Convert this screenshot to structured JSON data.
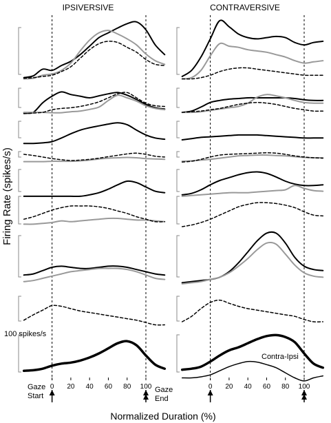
{
  "figure": {
    "panel_titles": [
      "IPSIVERSIVE",
      "CONTRAVERSIVE"
    ],
    "ylabel": "Firing Rate (spikes/s)",
    "xlabel": "Normalized Duration (%)",
    "scale_bar_label": "100 spikes/s",
    "gaze_start_label": [
      "Gaze",
      "Start"
    ],
    "gaze_end_label": [
      "Gaze",
      "End"
    ],
    "difference_label": "Contra-Ipsi"
  },
  "chart_data": [
    {
      "type": "line",
      "title": "IPSIVERSIVE",
      "xlabel": "Normalized Duration (%)",
      "ylabel": "Firing Rate (spikes/s)",
      "x": [
        -30,
        -20,
        -10,
        0,
        10,
        20,
        30,
        40,
        50,
        60,
        70,
        80,
        90,
        100,
        110,
        120
      ],
      "xticks": [
        0,
        20,
        40,
        60,
        80,
        100
      ],
      "xlim": [
        -32,
        122
      ],
      "gaze_markers": [
        0,
        100
      ],
      "scale_bar_spikes_per_s": 100,
      "colors": {
        "black": "#000000",
        "gray": "#999999"
      },
      "series": [
        {
          "color": "black",
          "style": "solid",
          "width": 2,
          "values": [
            0.06,
            0.09,
            0.2,
            0.18,
            0.26,
            0.33,
            0.44,
            0.58,
            0.72,
            0.8,
            0.88,
            0.95,
            0.98,
            0.85,
            0.6,
            0.44
          ]
        },
        {
          "color": "gray",
          "style": "solid",
          "width": 2,
          "values": [
            0.04,
            0.05,
            0.1,
            0.12,
            0.18,
            0.3,
            0.5,
            0.68,
            0.8,
            0.84,
            0.78,
            0.7,
            0.6,
            0.45,
            0.34,
            0.28
          ]
        },
        {
          "color": "black",
          "style": "dashed",
          "width": 1.5,
          "values": [
            0.05,
            0.06,
            0.08,
            0.1,
            0.16,
            0.24,
            0.38,
            0.52,
            0.62,
            0.66,
            0.64,
            0.56,
            0.48,
            0.36,
            0.28,
            0.26
          ]
        },
        {
          "color": "black",
          "style": "solid",
          "width": 2,
          "values": [
            0.04,
            0.06,
            0.35,
            0.55,
            0.68,
            0.6,
            0.55,
            0.5,
            0.56,
            0.62,
            0.66,
            0.58,
            0.45,
            0.3,
            0.2,
            0.16
          ]
        },
        {
          "color": "gray",
          "style": "solid",
          "width": 2,
          "values": [
            0.06,
            0.06,
            0.06,
            0.05,
            0.05,
            0.08,
            0.1,
            0.15,
            0.22,
            0.42,
            0.58,
            0.5,
            0.4,
            0.26,
            0.18,
            0.14
          ]
        },
        {
          "color": "black",
          "style": "dashed",
          "width": 1.5,
          "values": [
            0.02,
            0.04,
            0.06,
            0.14,
            0.18,
            0.2,
            0.24,
            0.3,
            0.38,
            0.5,
            0.62,
            0.66,
            0.5,
            0.34,
            0.26,
            0.24
          ]
        },
        {
          "color": "black",
          "style": "solid",
          "width": 2,
          "values": [
            0.04,
            0.04,
            0.06,
            0.1,
            0.22,
            0.36,
            0.48,
            0.56,
            0.62,
            0.68,
            0.72,
            0.66,
            0.48,
            0.32,
            0.22,
            0.18
          ]
        },
        {
          "color": "gray",
          "style": "solid",
          "width": 2,
          "values": [
            0.12,
            0.12,
            0.12,
            0.14,
            0.14,
            0.14,
            0.16,
            0.2,
            0.26,
            0.3,
            0.32,
            0.34,
            0.32,
            0.28,
            0.26,
            0.24
          ]
        },
        {
          "color": "black",
          "style": "dashed",
          "width": 1.5,
          "values": [
            0.5,
            0.44,
            0.36,
            0.28,
            0.22,
            0.18,
            0.2,
            0.24,
            0.3,
            0.38,
            0.45,
            0.52,
            0.56,
            0.5,
            0.4,
            0.36
          ]
        },
        {
          "color": "black",
          "style": "solid",
          "width": 2,
          "values": [
            0.06,
            0.06,
            0.06,
            0.06,
            0.06,
            0.06,
            0.06,
            0.1,
            0.16,
            0.26,
            0.38,
            0.48,
            0.44,
            0.32,
            0.2,
            0.16
          ]
        },
        {
          "color": "gray",
          "style": "solid",
          "width": 2,
          "values": [
            0.16,
            0.16,
            0.18,
            0.2,
            0.24,
            0.22,
            0.24,
            0.26,
            0.28,
            0.3,
            0.3,
            0.28,
            0.26,
            0.26,
            0.24,
            0.22
          ]
        },
        {
          "color": "black",
          "style": "dashed",
          "width": 1.5,
          "values": [
            0.28,
            0.34,
            0.42,
            0.5,
            0.56,
            0.6,
            0.6,
            0.6,
            0.58,
            0.54,
            0.48,
            0.42,
            0.34,
            0.28,
            0.22,
            0.22
          ]
        },
        {
          "color": "black",
          "style": "solid",
          "width": 2,
          "values": [
            0.16,
            0.18,
            0.24,
            0.3,
            0.32,
            0.3,
            0.28,
            0.28,
            0.3,
            0.32,
            0.32,
            0.3,
            0.26,
            0.22,
            0.18,
            0.16
          ]
        },
        {
          "color": "gray",
          "style": "solid",
          "width": 2,
          "values": [
            0.04,
            0.06,
            0.1,
            0.14,
            0.18,
            0.22,
            0.24,
            0.26,
            0.28,
            0.28,
            0.28,
            0.26,
            0.22,
            0.16,
            0.1,
            0.08
          ]
        },
        {
          "color": "black",
          "style": "dashed",
          "width": 1.5,
          "values": [
            0.2,
            0.34,
            0.46,
            0.58,
            0.56,
            0.5,
            0.44,
            0.4,
            0.36,
            0.32,
            0.28,
            0.24,
            0.2,
            0.14,
            0.08,
            0.08
          ]
        },
        {
          "color": "black",
          "style": "solid",
          "width": 3.5,
          "values": [
            0.16,
            0.17,
            0.2,
            0.26,
            0.3,
            0.32,
            0.36,
            0.42,
            0.5,
            0.6,
            0.7,
            0.74,
            0.66,
            0.46,
            0.28,
            0.2
          ]
        }
      ]
    },
    {
      "type": "line",
      "title": "CONTRAVERSIVE",
      "xlabel": "Normalized Duration (%)",
      "ylabel": "Firing Rate (spikes/s)",
      "x": [
        -30,
        -20,
        -10,
        0,
        10,
        20,
        30,
        40,
        50,
        60,
        70,
        80,
        90,
        100,
        110,
        120
      ],
      "xticks": [
        0,
        20,
        40,
        60,
        80,
        100
      ],
      "xlim": [
        -32,
        122
      ],
      "gaze_markers": [
        0,
        100
      ],
      "scale_bar_spikes_per_s": 100,
      "colors": {
        "black": "#000000",
        "gray": "#999999"
      },
      "series": [
        {
          "color": "black",
          "style": "solid",
          "width": 2,
          "values": [
            0.08,
            0.18,
            0.4,
            0.7,
            1.0,
            0.9,
            0.78,
            0.72,
            0.7,
            0.72,
            0.74,
            0.72,
            0.64,
            0.6,
            0.64,
            0.66
          ]
        },
        {
          "color": "gray",
          "style": "solid",
          "width": 2,
          "values": [
            0.04,
            0.06,
            0.18,
            0.42,
            0.62,
            0.58,
            0.56,
            0.52,
            0.5,
            0.48,
            0.44,
            0.4,
            0.34,
            0.3,
            0.32,
            0.34
          ]
        },
        {
          "color": "black",
          "style": "dashed",
          "width": 1.5,
          "values": [
            0.04,
            0.04,
            0.06,
            0.1,
            0.16,
            0.2,
            0.22,
            0.22,
            0.2,
            0.18,
            0.16,
            0.14,
            0.12,
            0.1,
            0.1,
            0.1
          ]
        },
        {
          "color": "black",
          "style": "solid",
          "width": 2,
          "values": [
            0.06,
            0.1,
            0.22,
            0.36,
            0.42,
            0.46,
            0.48,
            0.5,
            0.5,
            0.5,
            0.5,
            0.5,
            0.48,
            0.44,
            0.42,
            0.42
          ]
        },
        {
          "color": "gray",
          "style": "solid",
          "width": 2,
          "values": [
            0.06,
            0.06,
            0.08,
            0.12,
            0.16,
            0.2,
            0.24,
            0.34,
            0.52,
            0.6,
            0.56,
            0.5,
            0.42,
            0.36,
            0.34,
            0.34
          ]
        },
        {
          "color": "black",
          "style": "dashed",
          "width": 1.5,
          "values": [
            0.06,
            0.08,
            0.1,
            0.14,
            0.18,
            0.24,
            0.3,
            0.34,
            0.36,
            0.34,
            0.3,
            0.24,
            0.18,
            0.14,
            0.1,
            0.1
          ]
        },
        {
          "color": "black",
          "style": "solid",
          "width": 2,
          "values": [
            0.16,
            0.2,
            0.24,
            0.26,
            0.28,
            0.3,
            0.32,
            0.32,
            0.32,
            0.3,
            0.28,
            0.26,
            0.24,
            0.22,
            0.22,
            0.22
          ]
        },
        {
          "color": "gray",
          "style": "solid",
          "width": 2,
          "values": [
            0.14,
            0.16,
            0.2,
            0.24,
            0.3,
            0.36,
            0.42,
            0.44,
            0.46,
            0.46,
            0.44,
            0.42,
            0.38,
            0.34,
            0.32,
            0.32
          ]
        },
        {
          "color": "black",
          "style": "dashed",
          "width": 1.5,
          "values": [
            0.1,
            0.14,
            0.24,
            0.36,
            0.46,
            0.5,
            0.52,
            0.54,
            0.56,
            0.58,
            0.56,
            0.5,
            0.42,
            0.36,
            0.32,
            0.3
          ]
        },
        {
          "color": "black",
          "style": "solid",
          "width": 2,
          "values": [
            0.1,
            0.14,
            0.24,
            0.38,
            0.5,
            0.58,
            0.66,
            0.72,
            0.74,
            0.7,
            0.6,
            0.48,
            0.4,
            0.36,
            0.36,
            0.38
          ]
        },
        {
          "color": "gray",
          "style": "solid",
          "width": 2,
          "values": [
            0.06,
            0.08,
            0.1,
            0.12,
            0.14,
            0.16,
            0.16,
            0.16,
            0.18,
            0.2,
            0.22,
            0.24,
            0.36,
            0.28,
            0.22,
            0.2
          ]
        },
        {
          "color": "black",
          "style": "dashed",
          "width": 1.5,
          "values": [
            0.1,
            0.14,
            0.2,
            0.28,
            0.38,
            0.48,
            0.58,
            0.64,
            0.68,
            0.68,
            0.66,
            0.62,
            0.56,
            0.46,
            0.38,
            0.36
          ]
        },
        {
          "color": "black",
          "style": "solid",
          "width": 2,
          "values": [
            0.02,
            0.04,
            0.06,
            0.08,
            0.12,
            0.22,
            0.38,
            0.58,
            0.78,
            0.92,
            0.92,
            0.74,
            0.48,
            0.32,
            0.26,
            0.24
          ]
        },
        {
          "color": "gray",
          "style": "solid",
          "width": 2,
          "values": [
            0.0,
            0.02,
            0.04,
            0.08,
            0.12,
            0.2,
            0.32,
            0.46,
            0.62,
            0.74,
            0.72,
            0.54,
            0.34,
            0.2,
            0.14,
            0.12
          ]
        },
        {
          "color": "black",
          "style": "dashed",
          "width": 1.5,
          "values": [
            0.16,
            0.3,
            0.5,
            0.66,
            0.72,
            0.64,
            0.56,
            0.5,
            0.46,
            0.42,
            0.38,
            0.34,
            0.3,
            0.22,
            0.16,
            0.16
          ]
        },
        {
          "color": "black",
          "style": "solid",
          "width": 3.5,
          "values": [
            0.18,
            0.2,
            0.24,
            0.34,
            0.46,
            0.56,
            0.62,
            0.7,
            0.78,
            0.84,
            0.86,
            0.82,
            0.72,
            0.5,
            0.3,
            0.22
          ]
        },
        {
          "color": "black",
          "style": "solid",
          "width": 1.5,
          "values": [
            0.02,
            0.02,
            0.04,
            0.08,
            0.16,
            0.24,
            0.3,
            0.34,
            0.33,
            0.28,
            0.22,
            0.12,
            0.02,
            -0.04,
            0.02,
            0.06
          ]
        }
      ]
    }
  ]
}
